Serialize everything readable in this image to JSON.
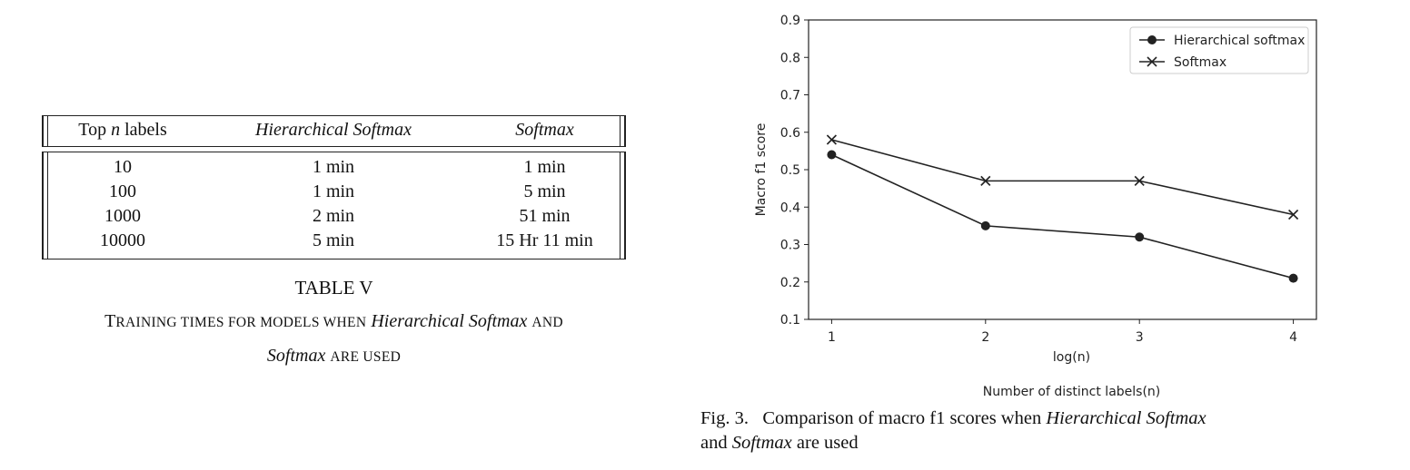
{
  "table": {
    "headers": {
      "col1_prefix": "Top ",
      "col1_var": "n",
      "col1_suffix": " labels",
      "col2": "Hierarchical Softmax",
      "col3": "Softmax"
    },
    "rows": [
      {
        "labels": "10",
        "hier": "1 min",
        "soft": "1 min"
      },
      {
        "labels": "100",
        "hier": "1 min",
        "soft": "5 min"
      },
      {
        "labels": "1000",
        "hier": "2 min",
        "soft": "51 min"
      },
      {
        "labels": "10000",
        "hier": "5 min",
        "soft": "15 Hr 11 min"
      }
    ],
    "number": "TABLE V",
    "caption": {
      "t_first": "T",
      "t_rest": "RAINING TIMES FOR MODELS WHEN",
      "term1": "Hierarchical Softmax",
      "and": "AND",
      "term2": "Softmax",
      "are_used": "ARE USED"
    }
  },
  "chart_data": {
    "type": "line",
    "xlabel": "log(n)",
    "xlabel2": "Number of distinct labels(n)",
    "ylabel": "Macro f1 score",
    "x": [
      1,
      2,
      3,
      4
    ],
    "xticks": [
      "1",
      "2",
      "3",
      "4"
    ],
    "yticks": [
      "0.1",
      "0.2",
      "0.3",
      "0.4",
      "0.5",
      "0.6",
      "0.7",
      "0.8",
      "0.9"
    ],
    "xlim": [
      0.85,
      4.15
    ],
    "ylim": [
      0.1,
      0.9
    ],
    "grid": false,
    "legend_position": "top-right",
    "series": [
      {
        "name": "Hierarchical softmax",
        "marker": "circle",
        "color": "#222222",
        "values": [
          0.54,
          0.35,
          0.32,
          0.21
        ]
      },
      {
        "name": "Softmax",
        "marker": "x",
        "color": "#222222",
        "values": [
          0.58,
          0.47,
          0.47,
          0.38
        ]
      }
    ]
  },
  "figure": {
    "label": "Fig. 3.",
    "caption_pre": "Comparison of macro f1 scores when",
    "term1": "Hierarchical Softmax",
    "and": "and",
    "term2": "Softmax",
    "caption_post": "are used"
  }
}
